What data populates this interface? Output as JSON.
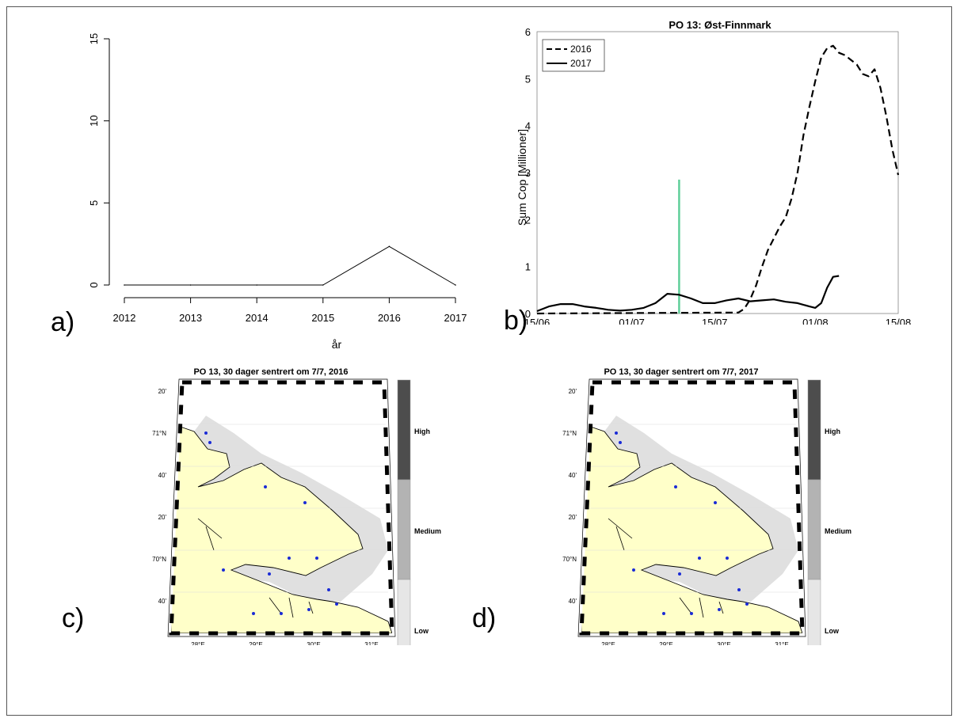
{
  "panel_labels": [
    "a)",
    "b)",
    "c)",
    "d)"
  ],
  "chart_data": [
    {
      "type": "line",
      "xlabel": "år",
      "ylabel": "",
      "x": [
        2012,
        2013,
        2014,
        2015,
        2016,
        2017
      ],
      "x_tick_labels": [
        "2012",
        "2013",
        "2014",
        "2015",
        "2016",
        "2017"
      ],
      "y_tick_labels": [
        "0",
        "5",
        "10",
        "15"
      ],
      "ylim": [
        0,
        15
      ],
      "series": [
        {
          "values": [
            0,
            0,
            0,
            0,
            2.35,
            0
          ],
          "color": "#000000"
        }
      ]
    },
    {
      "type": "line",
      "title": "PO 13: Øst-Finnmark",
      "xlabel": "",
      "ylabel": "Sum Cop [Millioner]",
      "x_tick_labels": [
        "15/06",
        "01/07",
        "15/07",
        "01/08",
        "15/08"
      ],
      "x_tick_dates": [
        "2017-06-15",
        "2017-07-01",
        "2017-07-15",
        "2017-08-01",
        "2017-08-15"
      ],
      "y_tick_labels": [
        "0",
        "1",
        "2",
        "3",
        "4",
        "5",
        "6"
      ],
      "ylim": [
        0,
        6
      ],
      "grid": true,
      "legend_position": "top-left",
      "series": [
        {
          "name": "2016",
          "style": "dashed",
          "color": "#000000",
          "x": [
            "2017-06-15",
            "2017-07-19",
            "2017-07-20",
            "2017-07-21",
            "2017-07-22",
            "2017-07-23",
            "2017-07-24",
            "2017-07-25",
            "2017-07-26",
            "2017-07-27",
            "2017-07-28",
            "2017-07-29",
            "2017-07-30",
            "2017-07-31",
            "2017-08-01",
            "2017-08-02",
            "2017-08-03",
            "2017-08-04",
            "2017-08-05",
            "2017-08-06",
            "2017-08-07",
            "2017-08-08",
            "2017-08-09",
            "2017-08-10",
            "2017-08-11",
            "2017-08-12",
            "2017-08-13",
            "2017-08-14",
            "2017-08-15"
          ],
          "y": [
            0,
            0.02,
            0.1,
            0.3,
            0.6,
            1.0,
            1.35,
            1.6,
            1.85,
            2.05,
            2.45,
            3.0,
            3.8,
            4.4,
            4.95,
            5.45,
            5.65,
            5.7,
            5.55,
            5.5,
            5.4,
            5.3,
            5.1,
            5.05,
            5.2,
            4.8,
            4.2,
            3.5,
            2.95
          ]
        },
        {
          "name": "2017",
          "style": "solid",
          "color": "#000000",
          "x": [
            "2017-06-15",
            "2017-06-17",
            "2017-06-19",
            "2017-06-21",
            "2017-06-23",
            "2017-06-25",
            "2017-06-27",
            "2017-06-29",
            "2017-07-01",
            "2017-07-03",
            "2017-07-05",
            "2017-07-07",
            "2017-07-09",
            "2017-07-11",
            "2017-07-13",
            "2017-07-15",
            "2017-07-17",
            "2017-07-19",
            "2017-07-21",
            "2017-07-23",
            "2017-07-25",
            "2017-07-27",
            "2017-07-29",
            "2017-07-31",
            "2017-08-01",
            "2017-08-02",
            "2017-08-03",
            "2017-08-04",
            "2017-08-05"
          ],
          "y": [
            0.05,
            0.15,
            0.2,
            0.2,
            0.15,
            0.12,
            0.08,
            0.06,
            0.08,
            0.12,
            0.22,
            0.42,
            0.4,
            0.32,
            0.22,
            0.22,
            0.28,
            0.32,
            0.26,
            0.28,
            0.3,
            0.25,
            0.22,
            0.15,
            0.12,
            0.22,
            0.55,
            0.78,
            0.8
          ]
        }
      ],
      "annotations": [
        {
          "type": "vertical-line",
          "x": "2017-07-09",
          "y_top": 2.85,
          "color": "#5fcf9a"
        }
      ]
    }
  ],
  "maps": [
    {
      "title": "PO 13, 30 dager sentrert om 7/7, 2016",
      "lat_labels": [
        "20'",
        "71°N",
        "40'",
        "20'",
        "70°N",
        "40'"
      ],
      "lon_labels": [
        "28°E",
        "29°E",
        "30°E",
        "31°E"
      ],
      "colorbar": [
        {
          "label": "High",
          "color": "#4d4d4d"
        },
        {
          "label": "Medium",
          "color": "#b3b3b3"
        },
        {
          "label": "Low",
          "color": "#e6e6e6"
        }
      ],
      "land_color": "#ffffc9",
      "sea_color": "#e0e0e0"
    },
    {
      "title": "PO 13, 30 dager sentrert om 7/7, 2017",
      "lat_labels": [
        "20'",
        "71°N",
        "40'",
        "20'",
        "70°N",
        "40'"
      ],
      "lon_labels": [
        "28°E",
        "29°E",
        "30°E",
        "31°E"
      ],
      "colorbar": [
        {
          "label": "High",
          "color": "#4d4d4d"
        },
        {
          "label": "Medium",
          "color": "#b3b3b3"
        },
        {
          "label": "Low",
          "color": "#e6e6e6"
        }
      ],
      "land_color": "#ffffc9",
      "sea_color": "#e0e0e0"
    }
  ]
}
